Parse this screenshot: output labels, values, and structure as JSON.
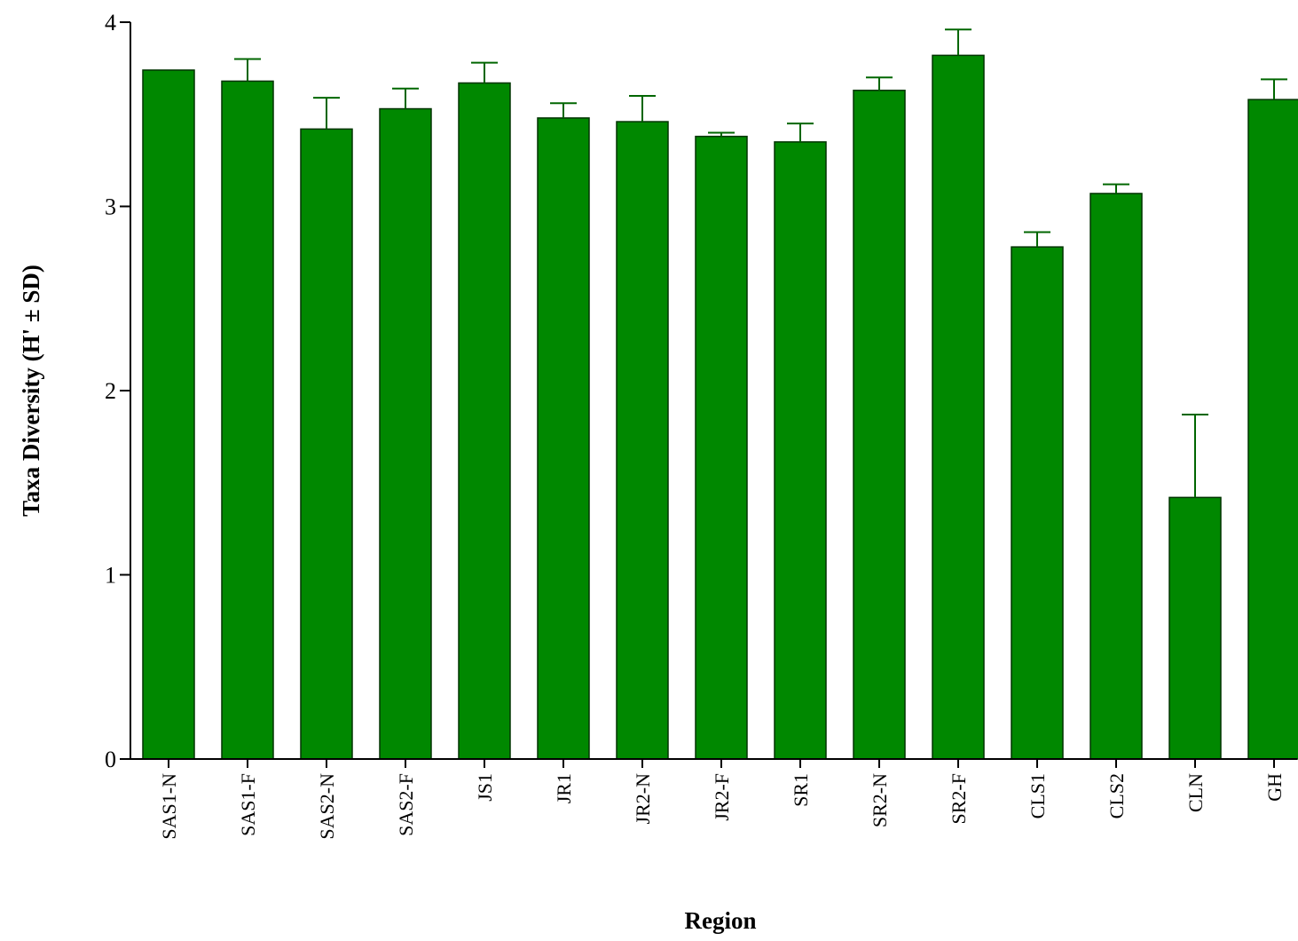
{
  "chart_data": {
    "type": "bar",
    "title": "",
    "xlabel": "Region",
    "ylabel": "Taxa Diversity (H' ± SD)",
    "ylim": [
      0,
      4
    ],
    "yticks": [
      0,
      1,
      2,
      3,
      4
    ],
    "categories": [
      "SAS1-N",
      "SAS1-F",
      "SAS2-N",
      "SAS2-F",
      "JS1",
      "JR1",
      "JR2-N",
      "JR2-F",
      "SR1",
      "SR2-N",
      "SR2-F",
      "CLS1",
      "CLS2",
      "CLN",
      "GH"
    ],
    "values": [
      3.74,
      3.68,
      3.42,
      3.53,
      3.67,
      3.48,
      3.46,
      3.38,
      3.35,
      3.63,
      3.82,
      2.78,
      3.07,
      1.42,
      3.58
    ],
    "errors": [
      0.0,
      0.12,
      0.17,
      0.11,
      0.11,
      0.08,
      0.14,
      0.02,
      0.1,
      0.07,
      0.14,
      0.08,
      0.05,
      0.45,
      0.11
    ],
    "grid": false,
    "legend": "none",
    "colors": {
      "bar_fill": "#008800",
      "bar_stroke": "#003300",
      "error_bar": "#006600",
      "axis": "#000000"
    }
  }
}
